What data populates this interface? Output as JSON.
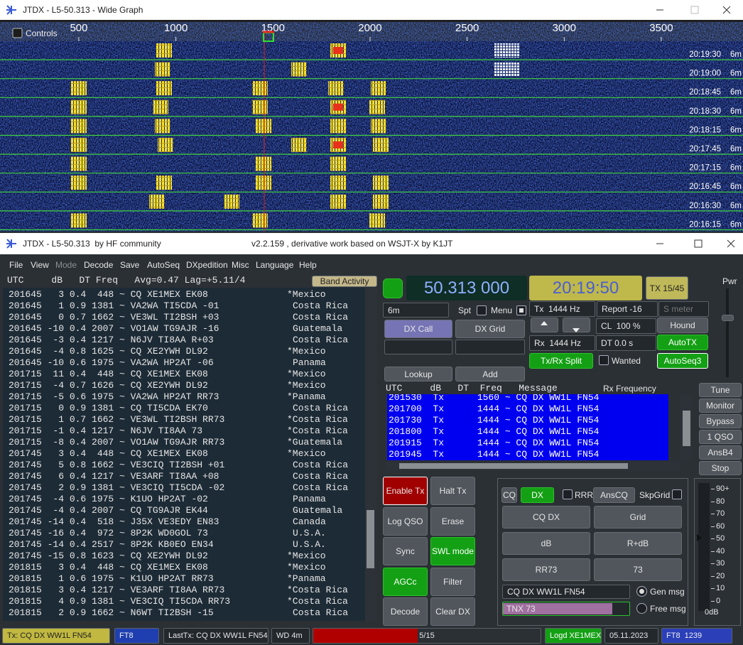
{
  "wide_graph": {
    "title": "JTDX - L5-50.313 - Wide Graph",
    "controls": "Controls",
    "freq_axis": {
      "xlim": [
        94,
        3921
      ],
      "ticks": [
        500,
        1000,
        1500,
        2000,
        2500,
        3000,
        3500
      ]
    },
    "rows": [
      [
        "20:19:30",
        "6m"
      ],
      [
        "20:19:00",
        "6m"
      ],
      [
        "20:18:45",
        "6m"
      ],
      [
        "20:18:30",
        "6m"
      ],
      [
        "20:18:15",
        "6m"
      ],
      [
        "20:17:45",
        "6m"
      ],
      [
        "20:17:15",
        "6m"
      ],
      [
        "20:16:45",
        "6m"
      ],
      [
        "20:16:30",
        "6m"
      ],
      [
        "20:16:15",
        "6m"
      ]
    ]
  },
  "main_window": {
    "title": "JTDX - L5-50.313  by HF community",
    "subtitle": "v2.2.159 , derivative work based on WSJT-X by K1JT",
    "menu": [
      "File",
      "View",
      "Mode",
      "Decode",
      "Save",
      "AutoSeq",
      "DXpedition",
      "Misc",
      "Language",
      "Help"
    ]
  },
  "band_activity": {
    "header": "UTC     dB   DT Freq   Avg=0.47 Lag=+5.11/4",
    "button": "Band Activity",
    "decodes": [
      [
        "201645   3 0.4  448 ~ CQ XE1MEX EK08",
        "*Mexico"
      ],
      [
        "201645   1 0.9 1381 ~ VA2WA TI5CDA -01",
        "Costa Rica"
      ],
      [
        "201645   0 0.7 1662 ~ VE3WL TI2BSH +03",
        "Costa Rica"
      ],
      [
        "201645 -10 0.4 2007 ~ VO1AW TG9AJR -16",
        "Guatemala"
      ],
      [
        "201645  -3 0.4 1217 ~ N6JV TI8AA R+03",
        "Costa Rica"
      ],
      [
        "201645  -4 0.8 1625 ~ CQ XE2YWH DL92",
        "*Mexico"
      ],
      [
        "201645 -10 0.6 1975 ~ VA2WA HP2AT -06",
        "Panama"
      ],
      [
        "201715  11 0.4  448 ~ CQ XE1MEX EK08",
        "*Mexico"
      ],
      [
        "201715  -4 0.7 1626 ~ CQ XE2YWH DL92",
        "*Mexico"
      ],
      [
        "201715  -5 0.6 1975 ~ VA2WA HP2AT RR73",
        "*Panama"
      ],
      [
        "201715   0 0.9 1381 ~ CQ TI5CDA EK70",
        "Costa Rica"
      ],
      [
        "201715   1 0.7 1662 ~ VE3WL TI2BSH RR73",
        "*Costa Rica"
      ],
      [
        "201715  -1 0.4 1217 ~ N6JV TI8AA 73",
        "*Costa Rica"
      ],
      [
        "201715  -8 0.4 2007 ~ VO1AW TG9AJR RR73",
        "*Guatemala"
      ],
      [
        "201745   3 0.4  448 ~ CQ XE1MEX EK08",
        "*Mexico"
      ],
      [
        "201745   5 0.8 1662 ~ VE3CIQ TI2BSH +01",
        "Costa Rica"
      ],
      [
        "201745   6 0.4 1217 ~ VE3ARF TI8AA +08",
        "Costa Rica"
      ],
      [
        "201745   2 0.9 1381 ~ VE3CIQ TI5CDA -02",
        "Costa Rica"
      ],
      [
        "201745  -4 0.6 1975 ~ K1UO HP2AT -02",
        "Panama"
      ],
      [
        "201745  -4 0.4 2007 ~ CQ TG9AJR EK44",
        "Guatemala"
      ],
      [
        "201745 -14 0.4  518 ~ J35X VE3EDY EN83",
        "Canada"
      ],
      [
        "201745 -16 0.4  972 ~ 8P2K WD0GOL 73",
        "U.S.A."
      ],
      [
        "201745 -14 0.4 2517 ~ 8P2K KB0EO EN34",
        "U.S.A."
      ],
      [
        "201745 -15 0.8 1623 ~ CQ XE2YWH DL92",
        "*Mexico"
      ],
      [
        "201815   3 0.4  448 ~ CQ XE1MEX EK08",
        "*Mexico"
      ],
      [
        "201815   1 0.6 1975 ~ K1UO HP2AT RR73",
        "*Panama"
      ],
      [
        "201815   3 0.4 1217 ~ VE3ARF TI8AA RR73",
        "*Costa Rica"
      ],
      [
        "201815   4 0.9 1381 ~ VE3CIQ TI5CDA RR73",
        "*Costa Rica"
      ],
      [
        "201815   2 0.9 1662 ~ N6WT TI2BSH -15",
        "Costa Rica"
      ]
    ]
  },
  "controls": {
    "dial_frequency": "50.313 000",
    "clock": "20:19:50",
    "tx_period": "TX 15/45",
    "power": "Pwr",
    "band": "6m",
    "spot": "Spt",
    "menu": "Menu",
    "tx_freq": "Tx  1444 Hz",
    "report": "Report -16",
    "s_meter": "S meter",
    "dx_call": "DX Call",
    "dx_grid": "DX Grid",
    "conf": "CL  100 %",
    "hound": "Hound",
    "rx_freq": "Rx  1444 Hz",
    "dt": "DT 0.0 s",
    "auto_tx": "AutoTX",
    "split": "Tx/Rx Split",
    "wanted": "Wanted",
    "auto_seq": "AutoSeq3",
    "lookup": "Lookup",
    "add": "Add"
  },
  "rx_frequency": {
    "header": "UTC     dB   DT  Freq   Message",
    "title": "Rx Frequency",
    "lines": [
      "201530  Tx      1560 ~ CQ DX WW1L FN54",
      "201700  Tx      1444 ~ CQ DX WW1L FN54",
      "201730  Tx      1444 ~ CQ DX WW1L FN54",
      "201800  Tx      1444 ~ CQ DX WW1L FN54",
      "201915  Tx      1444 ~ CQ DX WW1L FN54",
      "201945  Tx      1444 ~ CQ DX WW1L FN54"
    ]
  },
  "side_buttons": [
    "Tune",
    "Monitor",
    "Bypass",
    "1 QSO",
    "AnsB4",
    "Stop"
  ],
  "action_buttons": [
    "Enable Tx",
    "Halt Tx",
    "Log QSO",
    "Erase",
    "Sync",
    "SWL mode",
    "AGCc",
    "Filter",
    "Decode",
    "Clear DX"
  ],
  "tx_panel": {
    "cq": "CQ",
    "dx": "DX",
    "rrr": "RRR",
    "ans_cq": "AnsCQ",
    "skip_grid": "SkpGrid",
    "messages": [
      "CQ DX",
      "Grid",
      "dB",
      "R+dB",
      "RR73",
      "73"
    ],
    "gen_text": "CQ DX WW1L FN54",
    "gen_msg": "Gen msg",
    "free_text": "TNX 73",
    "free_msg": "Free msg"
  },
  "meter": {
    "ylim": [
      0,
      90
    ],
    "ticks": [
      {
        "value": 90,
        "label": "90+"
      },
      80,
      70,
      60,
      50,
      40,
      30,
      20,
      10,
      0
    ],
    "unit": "0dB"
  },
  "status_bar": [
    "Tx: CQ DX WW1L FN54",
    "FT8",
    "LastTx: CQ DX WW1L FN54",
    "WD 4m",
    "5/15",
    "Logd XE1MEX",
    "05.11.2023",
    "FT8  1239"
  ]
}
